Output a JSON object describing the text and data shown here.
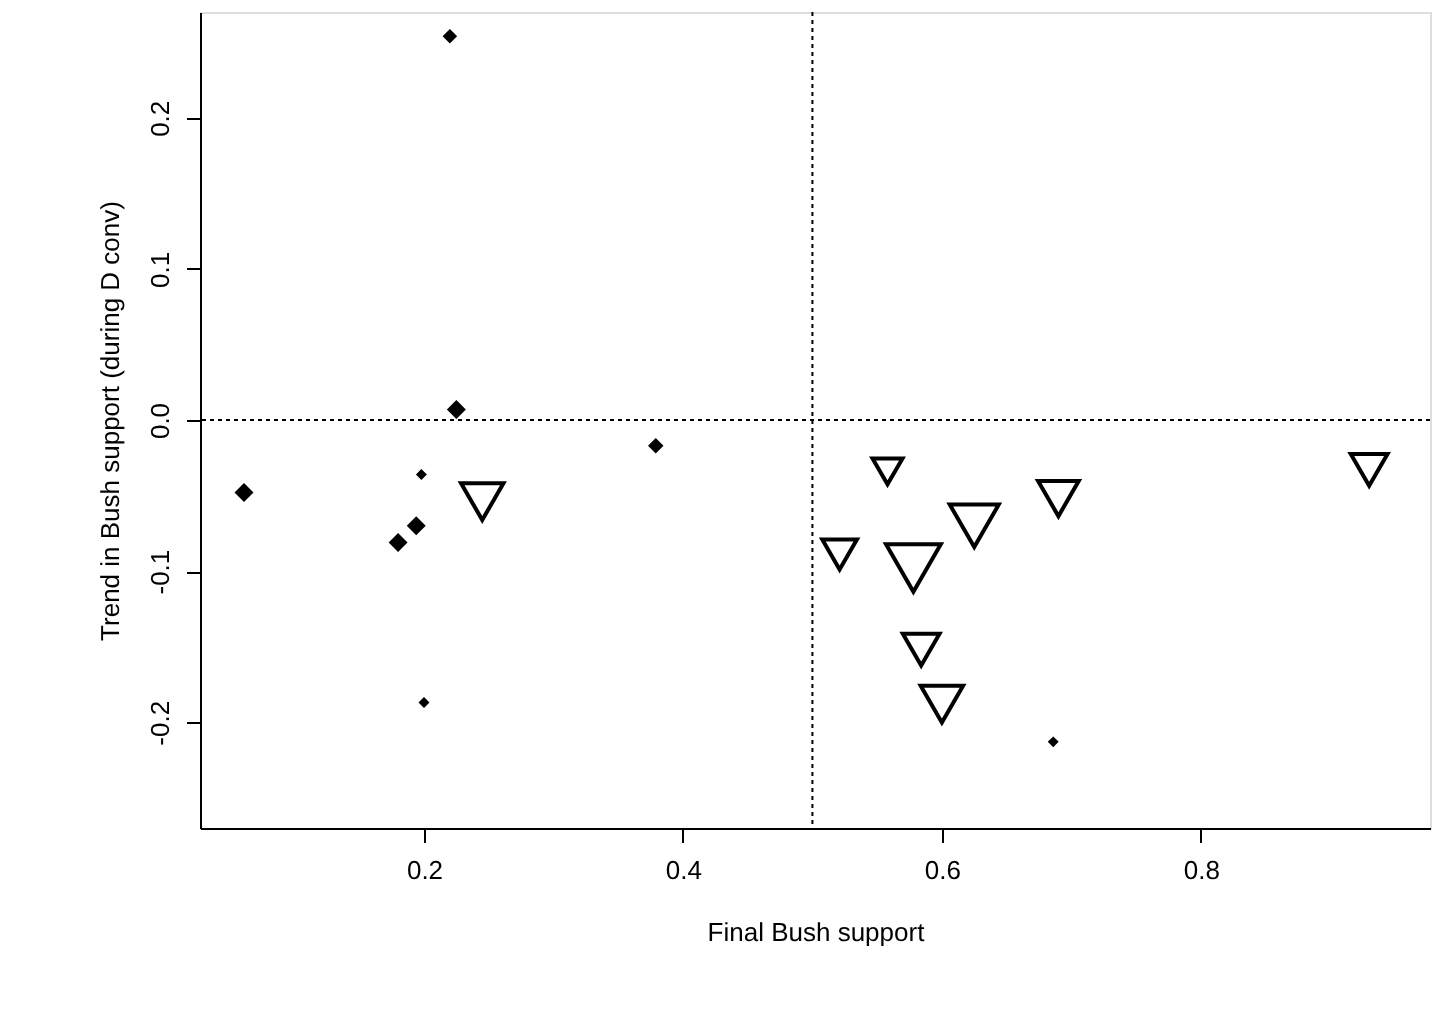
{
  "chart_data": {
    "type": "bubble",
    "xlabel": "Final Bush support",
    "ylabel": "Trend in Bush support (during D conv)",
    "series": [
      {
        "color": "#000000",
        "marker": "diamond",
        "x": [
          0.061,
          0.22,
          0.225,
          0.198,
          0.18,
          0.194,
          0.2,
          0.379,
          0.686
        ],
        "values": [
          -0.048,
          0.254,
          0.007,
          -0.036,
          -0.081,
          -0.07,
          -0.187,
          -0.017,
          -0.213
        ],
        "sizes": [
          0.12,
          0.07,
          0.12,
          0.04,
          0.12,
          0.12,
          0.04,
          0.08,
          0.04
        ]
      },
      {
        "color": "#000000",
        "marker": "triangle",
        "x": [
          0.245,
          0.521,
          0.558,
          0.578,
          0.625,
          0.69,
          0.93,
          0.584,
          0.6
        ],
        "values": [
          -0.054,
          -0.089,
          -0.034,
          -0.098,
          -0.07,
          -0.052,
          -0.033,
          -0.152,
          -0.188
        ],
        "sizes": [
          0.6,
          0.4,
          0.3,
          1,
          0.8,
          0.55,
          0.45,
          0.45,
          0.6
        ]
      }
    ],
    "xlim": [
      0.027,
      0.977
    ],
    "ylim": [
      -0.27,
      0.27
    ],
    "xticks": [
      0.2,
      0.4,
      0.6,
      0.8
    ],
    "yticks": [
      -0.2,
      -0.1,
      {
        "value": 0,
        "label": "0.0"
      },
      0.1,
      0.2
    ],
    "ref_lines": [
      {
        "axis": "x",
        "value": 0.5,
        "line_style": "dotted"
      },
      {
        "axis": "y",
        "value": 0,
        "line_style": "dotted"
      }
    ],
    "grid": false
  }
}
